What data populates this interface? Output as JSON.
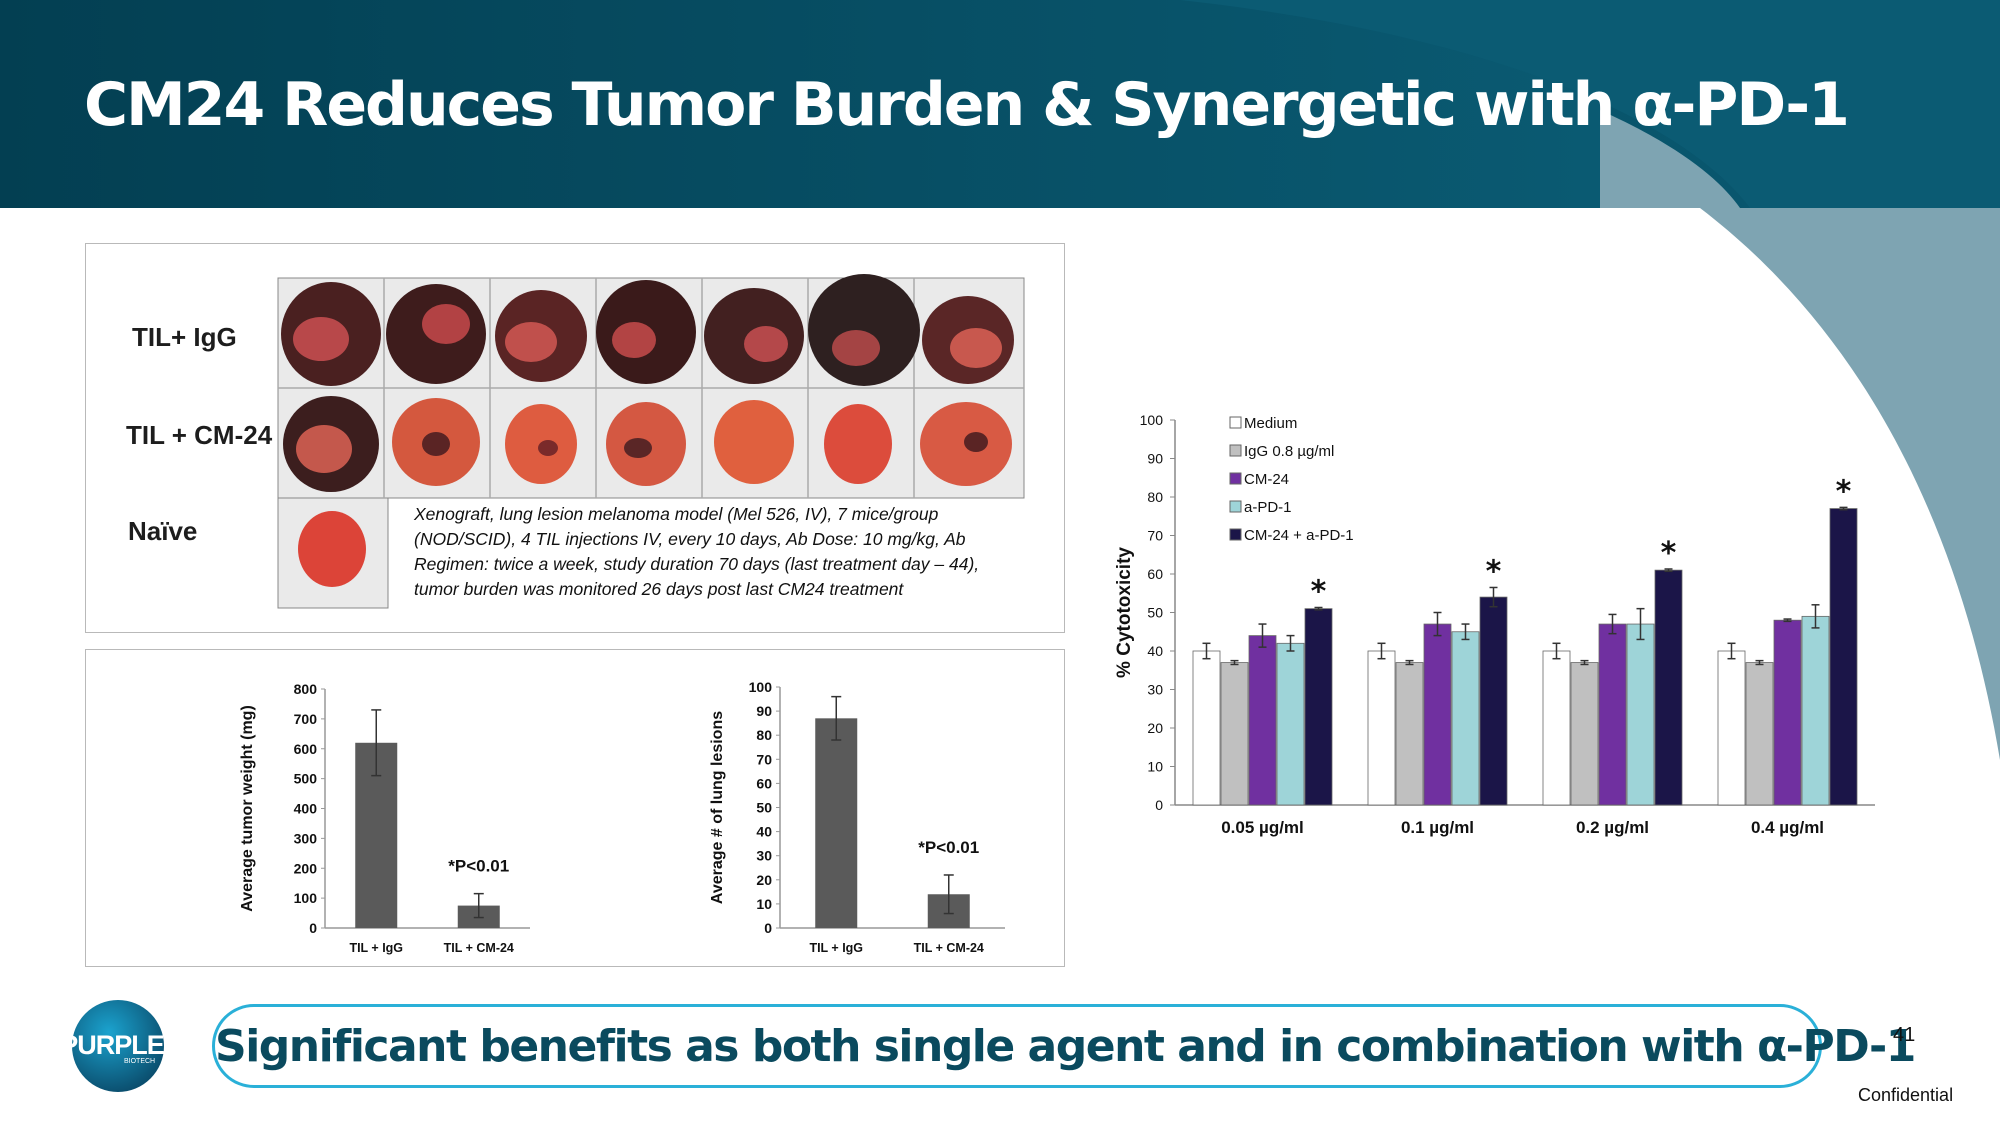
{
  "title": "CM24 Reduces Tumor Burden & Synergetic with α-PD-1",
  "photo_panel": {
    "rows": [
      "TIL+ IgG",
      "TIL + CM-24",
      "Naïve"
    ],
    "caption": "Xenograft, lung lesion melanoma model (Mel 526, IV), 7 mice/group (NOD/SCID), 4 TIL injections IV, every 10 days, Ab Dose: 10 mg/kg, Ab Regimen: twice a week, study duration 70 days (last treatment day – 44), tumor burden was monitored 26 days post last CM24 treatment"
  },
  "chart_data": [
    {
      "type": "bar",
      "ylabel": "Average tumor weight (mg)",
      "ylim": [
        0,
        800
      ],
      "yticks": [
        0,
        100,
        200,
        300,
        400,
        500,
        600,
        700,
        800
      ],
      "categories": [
        "TIL + IgG",
        "TIL + CM-24"
      ],
      "values": [
        620,
        75
      ],
      "errors": [
        110,
        40
      ],
      "annotation": "*P<0.01",
      "color": "#5a5a5a"
    },
    {
      "type": "bar",
      "ylabel": "Average # of lung lesions",
      "ylim": [
        0,
        100
      ],
      "yticks": [
        0,
        10,
        20,
        30,
        40,
        50,
        60,
        70,
        80,
        90,
        100
      ],
      "categories": [
        "TIL + IgG",
        "TIL + CM-24"
      ],
      "values": [
        87,
        14
      ],
      "errors": [
        9,
        8
      ],
      "annotation": "*P<0.01",
      "color": "#5a5a5a"
    },
    {
      "type": "bar",
      "ylabel": "% Cytotoxicity",
      "ylim": [
        0,
        100
      ],
      "yticks": [
        0,
        10,
        20,
        30,
        40,
        50,
        60,
        70,
        80,
        90,
        100
      ],
      "legend_position": "top-left",
      "categories": [
        "0.05 µg/ml",
        "0.1 µg/ml",
        "0.2 µg/ml",
        "0.4 µg/ml"
      ],
      "series": [
        {
          "name": "Medium",
          "color": "#ffffff",
          "values": [
            40,
            40,
            40,
            40
          ],
          "errors": [
            2,
            2,
            2,
            2
          ]
        },
        {
          "name": "IgG 0.8 µg/ml",
          "color": "#c0c0c0",
          "values": [
            37,
            37,
            37,
            37
          ],
          "errors": [
            0.5,
            0.5,
            0.5,
            0.5
          ]
        },
        {
          "name": "CM-24",
          "color": "#7030a0",
          "values": [
            44,
            47,
            47,
            48
          ],
          "errors": [
            3,
            3,
            2.5,
            0.3
          ]
        },
        {
          "name": "a-PD-1",
          "color": "#9ed4d8",
          "values": [
            42,
            45,
            47,
            49
          ],
          "errors": [
            2,
            2,
            4,
            3
          ]
        },
        {
          "name": "CM-24 + a-PD-1",
          "color": "#1b1548",
          "values": [
            51,
            54,
            61,
            77
          ],
          "errors": [
            0.3,
            2.5,
            0.3,
            0.3
          ]
        }
      ],
      "significance": [
        "*",
        "*",
        "*",
        "*"
      ]
    }
  ],
  "tagline": "Significant benefits as both single agent and in combination with α-PD-1",
  "logo": {
    "name": "PURPLE",
    "sub": "BIOTECH"
  },
  "page_number": "41",
  "footer": "Confidential"
}
